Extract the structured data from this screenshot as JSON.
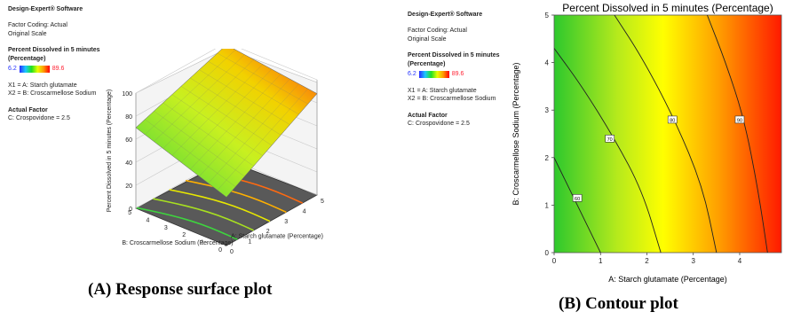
{
  "panel_a": {
    "software": "Design-Expert® Software",
    "factor_coding": "Factor Coding: Actual",
    "scale": "Original Scale",
    "response_label_1": "Percent Dissolved in 5 minutes",
    "response_label_2": "(Percentage)",
    "range_low": "6.2",
    "range_high": "89.6",
    "x1": "X1 = A: Starch glutamate",
    "x2": "X2 = B: Croscarmellose Sodium",
    "actual_factor_heading": "Actual Factor",
    "actual_factor": "C: Crospovidone = 2.5",
    "caption": "(A) Response surface plot"
  },
  "panel_b": {
    "software": "Design-Expert® Software",
    "factor_coding": "Factor Coding: Actual",
    "scale": "Original Scale",
    "response_label_1": "Percent Dissolved in 5 minutes",
    "response_label_2": "(Percentage)",
    "range_low": "6.2",
    "range_high": "89.6",
    "x1": "X1 = A: Starch glutamate",
    "x2": "X2 = B: Croscarmellose Sodium",
    "actual_factor_heading": "Actual Factor",
    "actual_factor": "C: Crospovidone = 2.5",
    "caption": "(B) Contour plot"
  },
  "chart_data": [
    {
      "type": "surface",
      "zlabel": "Percent Dissolved in 5 minutes (Percentage)",
      "xlabel": "A: Starch glutamate (Percentage)",
      "ylabel": "B: Croscarmellose Sodium (Percentage)",
      "z_ticks": [
        "0",
        "20",
        "40",
        "60",
        "80",
        "100"
      ],
      "x_ticks": [
        "0",
        "1",
        "2",
        "3",
        "4",
        "5"
      ],
      "y_ticks": [
        "0",
        "1",
        "2",
        "3",
        "4",
        "5"
      ],
      "zlim": [
        0,
        100
      ],
      "xlim": [
        0,
        5
      ],
      "ylim": [
        0,
        5
      ],
      "corner_values": [
        {
          "a": 0,
          "b": 0,
          "z": 42
        },
        {
          "a": 5,
          "b": 0,
          "z": 88
        },
        {
          "a": 0,
          "b": 5,
          "z": 70
        },
        {
          "a": 5,
          "b": 5,
          "z": 98
        }
      ],
      "colors": {
        "low": "#3ed43e",
        "mid": "#e8ff00",
        "high": "#ff3a1a"
      }
    },
    {
      "type": "contour",
      "title": "Percent Dissolved in 5 minutes (Percentage)",
      "xlabel": "A: Starch glutamate (Percentage)",
      "ylabel": "B: Croscarmellose Sodium (Percentage)",
      "x_ticks": [
        "0",
        "1",
        "2",
        "3",
        "4"
      ],
      "y_ticks": [
        "0",
        "1",
        "2",
        "3",
        "4",
        "5"
      ],
      "xlim": [
        0,
        4.9
      ],
      "ylim": [
        0,
        5
      ],
      "contours": [
        {
          "level": "60",
          "points": [
            [
              0,
              2.0
            ],
            [
              0.5,
              1.0
            ],
            [
              1.0,
              0
            ]
          ]
        },
        {
          "level": "70",
          "points": [
            [
              0,
              4.3
            ],
            [
              0.6,
              3.5
            ],
            [
              1.3,
              2.4
            ],
            [
              1.9,
              1.3
            ],
            [
              2.3,
              0
            ]
          ]
        },
        {
          "level": "80",
          "points": [
            [
              1.3,
              5.0
            ],
            [
              1.9,
              4.1
            ],
            [
              2.6,
              2.8
            ],
            [
              3.2,
              1.4
            ],
            [
              3.5,
              0
            ]
          ]
        },
        {
          "level": "90",
          "points": [
            [
              3.3,
              5.0
            ],
            [
              3.7,
              4.0
            ],
            [
              4.1,
              2.8
            ],
            [
              4.4,
              1.3
            ],
            [
              4.6,
              0
            ]
          ]
        }
      ],
      "label_positions": [
        {
          "level": "60",
          "x": 0.5,
          "y": 1.15
        },
        {
          "level": "70",
          "x": 1.2,
          "y": 2.4
        },
        {
          "level": "80",
          "x": 2.55,
          "y": 2.8
        },
        {
          "level": "90",
          "x": 4.0,
          "y": 2.8
        }
      ],
      "colors": {
        "low": "#2dc82d",
        "mid": "#ffff00",
        "high": "#ff1a00"
      }
    }
  ]
}
